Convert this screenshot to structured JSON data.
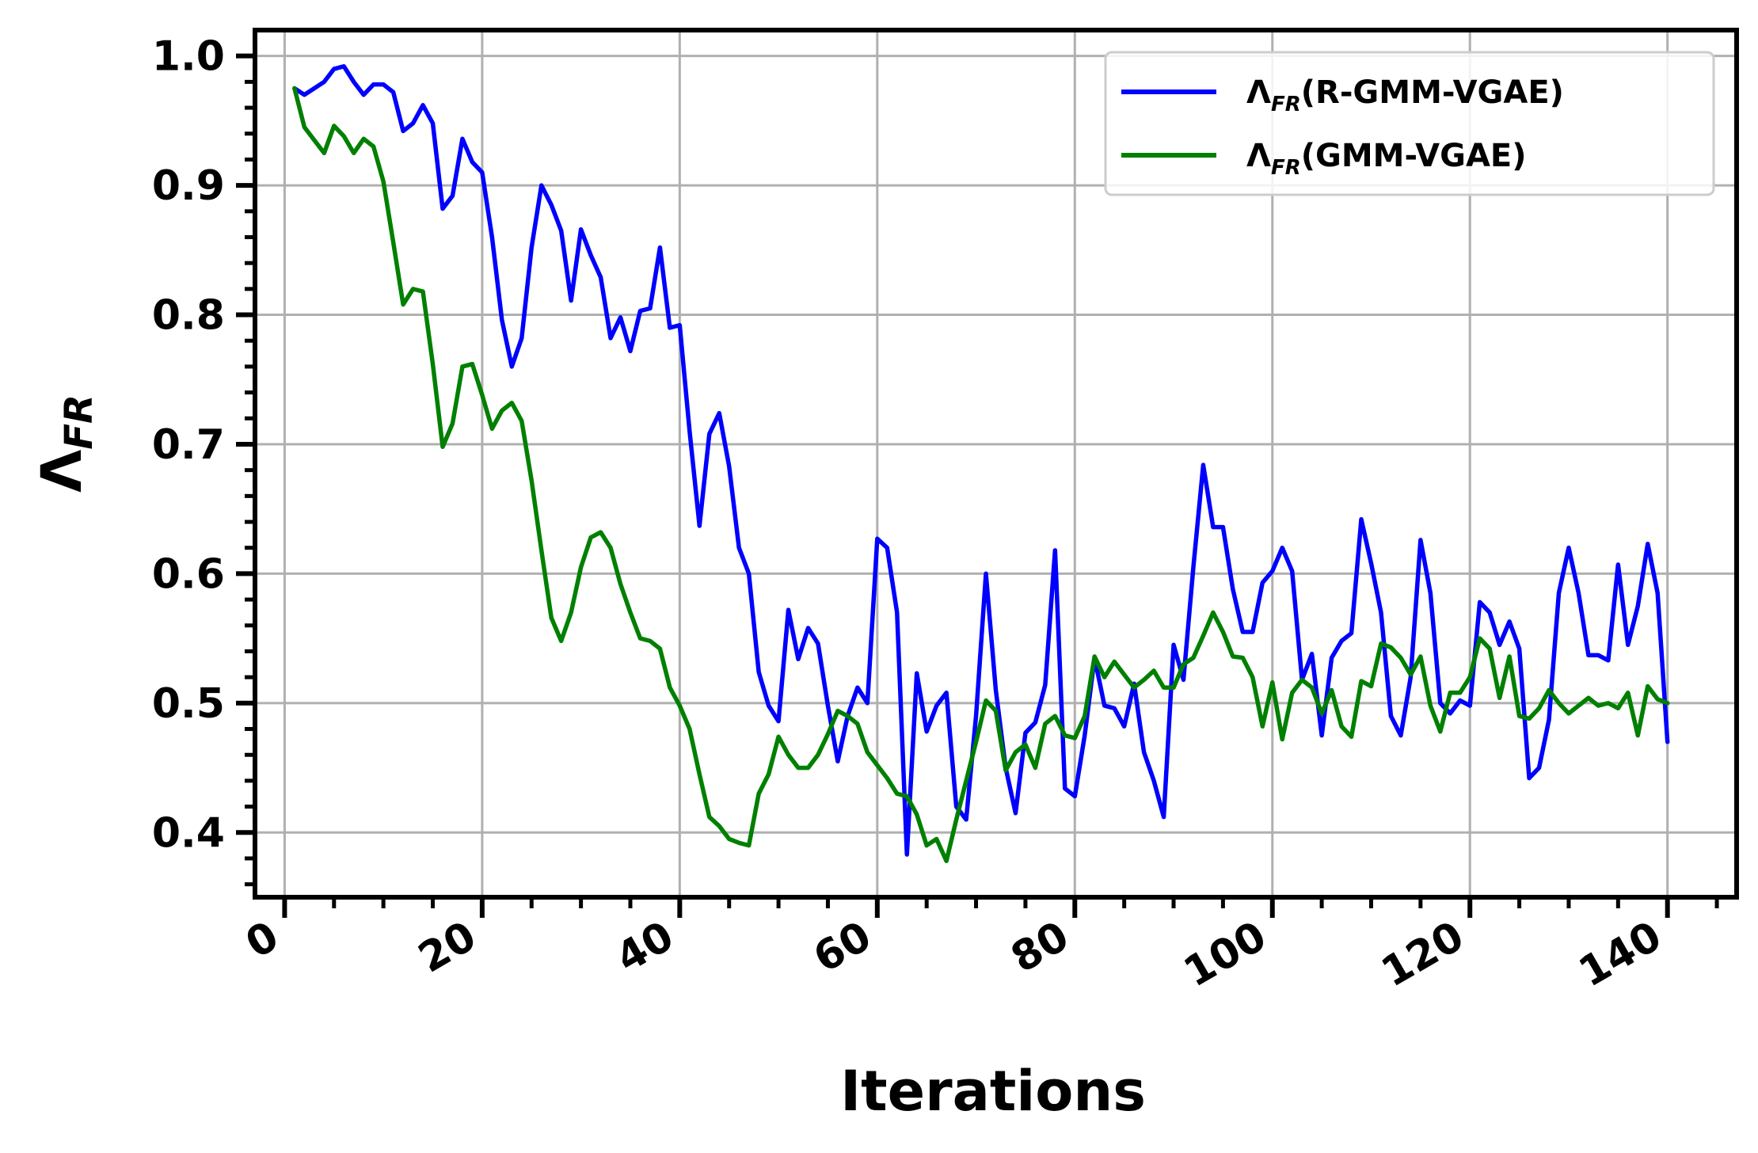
{
  "chart_data": {
    "type": "line",
    "xlabel": "Iterations",
    "ylabel": {
      "base": "Λ",
      "sub": "FR"
    },
    "xlim": [
      -3,
      147
    ],
    "ylim": [
      0.35,
      1.02
    ],
    "xticks": [
      0,
      20,
      40,
      60,
      80,
      100,
      120,
      140
    ],
    "xtick_labels": [
      "0",
      "20",
      "40",
      "60",
      "80",
      "100",
      "120",
      "140"
    ],
    "yticks": [
      0.4,
      0.5,
      0.6,
      0.7,
      0.8,
      0.9,
      1.0
    ],
    "ytick_labels": [
      "0.4",
      "0.5",
      "0.6",
      "0.7",
      "0.8",
      "0.9",
      "1.0"
    ],
    "grid": true,
    "legend_position": "top-right",
    "series": [
      {
        "name": "Λ_FR(R-GMM-VGAE)",
        "legend_base": "Λ",
        "legend_sub": "FR",
        "legend_rest": "(R-GMM-VGAE)",
        "color": "#0000ff",
        "x_start": 1,
        "values": [
          0.975,
          0.97,
          0.975,
          0.98,
          0.99,
          0.992,
          0.98,
          0.97,
          0.978,
          0.978,
          0.972,
          0.942,
          0.948,
          0.962,
          0.948,
          0.882,
          0.892,
          0.936,
          0.918,
          0.91,
          0.86,
          0.796,
          0.76,
          0.782,
          0.852,
          0.9,
          0.885,
          0.865,
          0.811,
          0.866,
          0.846,
          0.829,
          0.782,
          0.798,
          0.772,
          0.803,
          0.805,
          0.852,
          0.79,
          0.792,
          0.71,
          0.637,
          0.708,
          0.724,
          0.683,
          0.62,
          0.6,
          0.524,
          0.498,
          0.486,
          0.572,
          0.534,
          0.558,
          0.546,
          0.498,
          0.455,
          0.49,
          0.512,
          0.5,
          0.627,
          0.62,
          0.57,
          0.383,
          0.523,
          0.478,
          0.498,
          0.508,
          0.42,
          0.41,
          0.49,
          0.6,
          0.51,
          0.45,
          0.415,
          0.477,
          0.485,
          0.514,
          0.618,
          0.434,
          0.428,
          0.475,
          0.535,
          0.498,
          0.496,
          0.482,
          0.515,
          0.462,
          0.44,
          0.412,
          0.545,
          0.518,
          0.605,
          0.684,
          0.636,
          0.636,
          0.588,
          0.555,
          0.555,
          0.593,
          0.602,
          0.62,
          0.602,
          0.518,
          0.538,
          0.475,
          0.535,
          0.548,
          0.554,
          0.642,
          0.608,
          0.57,
          0.49,
          0.475,
          0.52,
          0.626,
          0.585,
          0.5,
          0.492,
          0.502,
          0.498,
          0.578,
          0.57,
          0.545,
          0.563,
          0.542,
          0.442,
          0.45,
          0.487,
          0.585,
          0.62,
          0.585,
          0.537,
          0.537,
          0.533,
          0.607,
          0.545,
          0.575,
          0.623,
          0.585,
          0.47
        ]
      },
      {
        "name": "Λ_FR(GMM-VGAE)",
        "legend_base": "Λ",
        "legend_sub": "FR",
        "legend_rest": "(GMM-VGAE)",
        "color": "#008000",
        "x_start": 1,
        "values": [
          0.975,
          0.945,
          0.935,
          0.925,
          0.946,
          0.938,
          0.925,
          0.936,
          0.93,
          0.903,
          0.856,
          0.808,
          0.82,
          0.818,
          0.762,
          0.698,
          0.716,
          0.76,
          0.762,
          0.738,
          0.712,
          0.726,
          0.732,
          0.718,
          0.672,
          0.618,
          0.566,
          0.548,
          0.57,
          0.605,
          0.628,
          0.632,
          0.62,
          0.592,
          0.57,
          0.55,
          0.548,
          0.542,
          0.512,
          0.498,
          0.48,
          0.445,
          0.412,
          0.405,
          0.395,
          0.392,
          0.39,
          0.43,
          0.445,
          0.474,
          0.46,
          0.45,
          0.45,
          0.46,
          0.476,
          0.494,
          0.49,
          0.484,
          0.462,
          0.452,
          0.442,
          0.43,
          0.428,
          0.414,
          0.39,
          0.395,
          0.378,
          0.41,
          0.44,
          0.47,
          0.502,
          0.494,
          0.448,
          0.462,
          0.468,
          0.45,
          0.484,
          0.49,
          0.475,
          0.473,
          0.49,
          0.536,
          0.52,
          0.532,
          0.522,
          0.512,
          0.518,
          0.525,
          0.512,
          0.512,
          0.53,
          0.535,
          0.552,
          0.57,
          0.555,
          0.536,
          0.535,
          0.52,
          0.482,
          0.516,
          0.472,
          0.508,
          0.518,
          0.512,
          0.492,
          0.51,
          0.482,
          0.474,
          0.517,
          0.513,
          0.546,
          0.543,
          0.535,
          0.522,
          0.536,
          0.498,
          0.478,
          0.508,
          0.508,
          0.52,
          0.55,
          0.542,
          0.504,
          0.536,
          0.49,
          0.488,
          0.496,
          0.51,
          0.5,
          0.492,
          0.498,
          0.504,
          0.498,
          0.5,
          0.496,
          0.508,
          0.475,
          0.513,
          0.503,
          0.5
        ]
      }
    ]
  }
}
